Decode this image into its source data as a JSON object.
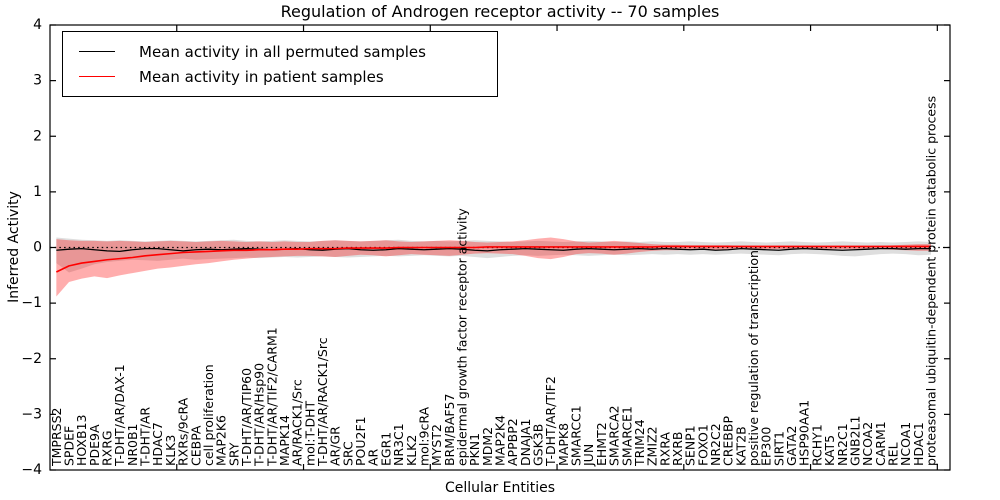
{
  "page": {
    "title": "Regulation of Androgen receptor activity -- 70 samples"
  },
  "legend": {
    "items": [
      {
        "label": "Mean activity in all permuted samples",
        "color": "#000000"
      },
      {
        "label": "Mean activity in patient samples",
        "color": "#ff0000"
      }
    ]
  },
  "chart_data": {
    "type": "line",
    "title": "Regulation of Androgen receptor activity -- 70 samples",
    "xlabel": "Cellular Entities",
    "ylabel": "Inferred Activity",
    "ylim": [
      -4,
      4
    ],
    "yticks": [
      -4,
      -3,
      -2,
      -1,
      0,
      1,
      2,
      3,
      4
    ],
    "xlim": [
      0,
      71
    ],
    "xticks": [
      10,
      20,
      30,
      40,
      50,
      60,
      70
    ],
    "grid": false,
    "legend_position": "upper left",
    "zero_line": {
      "y": 0,
      "style": "dotted",
      "color": "#000000"
    },
    "categories": [
      "TMPRSS2",
      "SPDEF",
      "HOXB13",
      "PDE9A",
      "RXRG",
      "T-DHT/AR/DAX-1",
      "NR0B1",
      "T-DHT/AR",
      "HDAC7",
      "KLK3",
      "RXRs/9cRA",
      "CEBPA",
      "cell proliferation",
      "MAP2K6",
      "SRY",
      "T-DHT/AR/TIP60",
      "T-DHT/AR/Hsp90",
      "T-DHT/AR/TIF2/CARM1",
      "MAPK14",
      "AR/RACK1/Src",
      "mol:T-DHT",
      "T-DHT/AR/RACK1/Src",
      "AR/GR",
      "SRC",
      "POU2F1",
      "AR",
      "EGR1",
      "NR3C1",
      "KLK2",
      "mol:9cRA",
      "MYST2",
      "BRM/BAF57",
      "epidermal growth factor receptor activity",
      "PKN1",
      "MDM2",
      "MAP2K4",
      "APPBP2",
      "DNAJA1",
      "GSK3B",
      "T-DHT/AR/TIF2",
      "MAPK8",
      "SMARCC1",
      "JUN",
      "EHMT2",
      "SMARCA2",
      "SMARCE1",
      "TRIM24",
      "ZMIZ2",
      "RXRA",
      "RXRB",
      "SENP1",
      "FOXO1",
      "NR2C2",
      "CREBBP",
      "KAT2B",
      "positive regulation of transcription",
      "EP300",
      "SIRT1",
      "GATA2",
      "HSP90AA1",
      "RCHY1",
      "KAT5",
      "NR2C1",
      "GNB2L1",
      "NCOA2",
      "CARM1",
      "REL",
      "NCOA1",
      "HDAC1",
      "proteasomal ubiquitin-dependent protein catabolic process"
    ],
    "series": [
      {
        "name": "Mean activity in all permuted samples",
        "color": "#000000",
        "values": [
          -0.05,
          -0.03,
          -0.02,
          -0.04,
          -0.06,
          -0.07,
          -0.04,
          -0.02,
          -0.02,
          -0.04,
          -0.06,
          -0.04,
          -0.03,
          -0.04,
          -0.03,
          -0.02,
          -0.03,
          -0.04,
          -0.03,
          -0.02,
          -0.04,
          -0.05,
          -0.03,
          -0.02,
          -0.04,
          -0.05,
          -0.04,
          -0.02,
          -0.03,
          -0.04,
          -0.03,
          -0.02,
          -0.03,
          -0.05,
          -0.06,
          -0.04,
          -0.03,
          -0.02,
          -0.03,
          -0.04,
          -0.05,
          -0.03,
          -0.02,
          -0.03,
          -0.04,
          -0.03,
          -0.02,
          -0.03,
          -0.02,
          -0.03,
          -0.04,
          -0.03,
          -0.05,
          -0.04,
          -0.02,
          -0.03,
          -0.04,
          -0.05,
          -0.03,
          -0.02,
          -0.03,
          -0.04,
          -0.05,
          -0.04,
          -0.03,
          -0.02,
          -0.02,
          -0.03,
          -0.02,
          -0.02
        ]
      },
      {
        "name": "Mean activity in patient samples",
        "color": "#ff0000",
        "values": [
          -0.44,
          -0.33,
          -0.28,
          -0.25,
          -0.22,
          -0.2,
          -0.18,
          -0.15,
          -0.13,
          -0.11,
          -0.09,
          -0.08,
          -0.07,
          -0.06,
          -0.05,
          -0.05,
          -0.04,
          -0.04,
          -0.03,
          -0.03,
          -0.02,
          -0.02,
          -0.02,
          -0.01,
          -0.01,
          -0.01,
          -0.01,
          0.0,
          0.0,
          0.0,
          0.0,
          0.0,
          0.0,
          0.0,
          0.01,
          0.01,
          0.01,
          0.01,
          0.01,
          0.01,
          0.01,
          0.01,
          0.01,
          0.01,
          0.01,
          0.01,
          0.01,
          0.01,
          0.02,
          0.02,
          0.02,
          0.02,
          0.02,
          0.02,
          0.02,
          0.02,
          0.02,
          0.02,
          0.02,
          0.02,
          0.02,
          0.02,
          0.02,
          0.02,
          0.02,
          0.02,
          0.02,
          0.02,
          0.02,
          0.02
        ]
      }
    ],
    "bands": [
      {
        "name": "permuted-samples-range",
        "color": "rgba(0,0,0,0.13)",
        "upper": [
          0.18,
          0.16,
          0.14,
          0.13,
          0.12,
          0.13,
          0.12,
          0.11,
          0.12,
          0.13,
          0.12,
          0.11,
          0.12,
          0.13,
          0.14,
          0.12,
          0.11,
          0.12,
          0.13,
          0.12,
          0.11,
          0.12,
          0.13,
          0.12,
          0.11,
          0.12,
          0.13,
          0.14,
          0.12,
          0.11,
          0.12,
          0.11,
          0.12,
          0.13,
          0.12,
          0.11,
          0.1,
          0.11,
          0.12,
          0.11,
          0.1,
          0.11,
          0.12,
          0.11,
          0.1,
          0.11,
          0.1,
          0.11,
          0.1,
          0.1,
          0.11,
          0.1,
          0.09,
          0.1,
          0.11,
          0.1,
          0.09,
          0.1,
          0.11,
          0.1,
          0.09,
          0.1,
          0.11,
          0.1,
          0.09,
          0.1,
          0.09,
          0.1,
          0.11,
          0.1
        ],
        "lower": [
          -0.28,
          -0.45,
          -0.38,
          -0.3,
          -0.26,
          -0.24,
          -0.22,
          -0.23,
          -0.24,
          -0.22,
          -0.2,
          -0.22,
          -0.21,
          -0.2,
          -0.19,
          -0.18,
          -0.19,
          -0.18,
          -0.17,
          -0.18,
          -0.17,
          -0.16,
          -0.17,
          -0.18,
          -0.17,
          -0.16,
          -0.15,
          -0.16,
          -0.15,
          -0.14,
          -0.15,
          -0.16,
          -0.15,
          -0.17,
          -0.19,
          -0.17,
          -0.15,
          -0.14,
          -0.15,
          -0.14,
          -0.13,
          -0.14,
          -0.15,
          -0.14,
          -0.13,
          -0.14,
          -0.13,
          -0.12,
          -0.13,
          -0.12,
          -0.13,
          -0.12,
          -0.13,
          -0.12,
          -0.11,
          -0.12,
          -0.13,
          -0.14,
          -0.12,
          -0.11,
          -0.12,
          -0.13,
          -0.15,
          -0.16,
          -0.14,
          -0.12,
          -0.11,
          -0.12,
          -0.14,
          -0.13
        ]
      },
      {
        "name": "patient-samples-range",
        "color": "rgba(255,0,0,0.32)",
        "upper": [
          0.15,
          0.13,
          0.12,
          0.12,
          0.11,
          0.12,
          0.11,
          0.1,
          0.11,
          0.12,
          0.11,
          0.1,
          0.11,
          0.12,
          0.11,
          0.1,
          0.11,
          0.1,
          0.11,
          0.1,
          0.1,
          0.12,
          0.13,
          0.12,
          0.11,
          0.12,
          0.13,
          0.11,
          0.1,
          0.11,
          0.12,
          0.13,
          0.12,
          0.1,
          0.09,
          0.1,
          0.11,
          0.13,
          0.16,
          0.18,
          0.15,
          0.11,
          0.09,
          0.1,
          0.12,
          0.1,
          0.08,
          0.06,
          0.05,
          0.05,
          0.04,
          0.04,
          0.04,
          0.04,
          0.03,
          0.03,
          0.03,
          0.03,
          0.03,
          0.03,
          0.03,
          0.03,
          0.03,
          0.03,
          0.03,
          0.03,
          0.04,
          0.05,
          0.06,
          0.06
        ],
        "lower": [
          -0.88,
          -0.62,
          -0.56,
          -0.52,
          -0.55,
          -0.5,
          -0.46,
          -0.42,
          -0.38,
          -0.36,
          -0.33,
          -0.3,
          -0.28,
          -0.25,
          -0.22,
          -0.2,
          -0.18,
          -0.17,
          -0.16,
          -0.15,
          -0.15,
          -0.16,
          -0.17,
          -0.15,
          -0.13,
          -0.14,
          -0.16,
          -0.14,
          -0.12,
          -0.13,
          -0.14,
          -0.15,
          -0.13,
          -0.11,
          -0.1,
          -0.11,
          -0.12,
          -0.15,
          -0.19,
          -0.21,
          -0.17,
          -0.12,
          -0.1,
          -0.11,
          -0.13,
          -0.11,
          -0.08,
          -0.06,
          -0.05,
          -0.05,
          -0.04,
          -0.04,
          -0.04,
          -0.04,
          -0.03,
          -0.03,
          -0.03,
          -0.03,
          -0.03,
          -0.03,
          -0.03,
          -0.03,
          -0.03,
          -0.03,
          -0.03,
          -0.03,
          -0.04,
          -0.05,
          -0.06,
          -0.06
        ]
      }
    ]
  }
}
